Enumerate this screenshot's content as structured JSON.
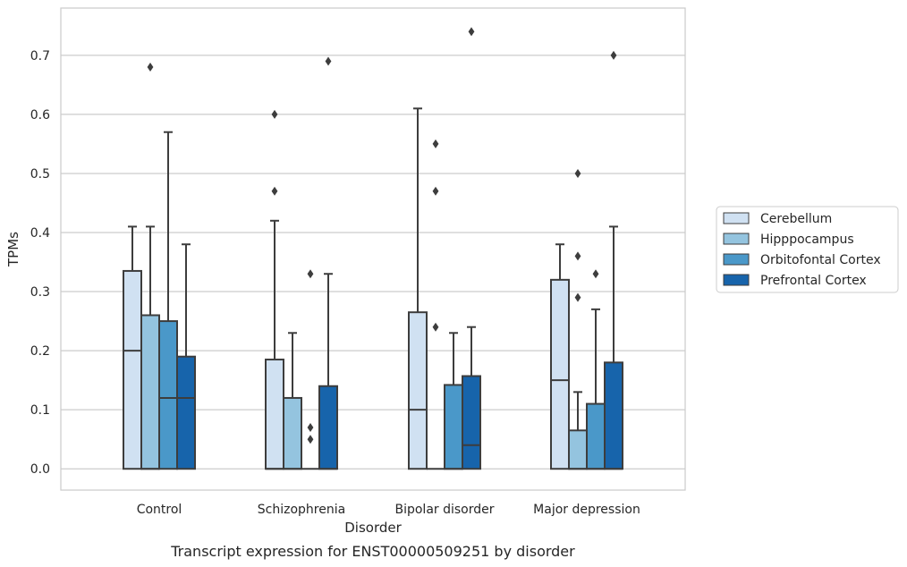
{
  "chart_data": {
    "type": "box",
    "title": "",
    "caption": "Transcript expression for ENST00000509251 by disorder",
    "xlabel": "Disorder",
    "ylabel": "TPMs",
    "ylim": [
      -0.036,
      0.78
    ],
    "yticks": [
      0.0,
      0.1,
      0.2,
      0.3,
      0.4,
      0.5,
      0.6,
      0.7
    ],
    "grid": true,
    "legend_position": "right",
    "categories": [
      "Control",
      "Schizophrenia",
      "Bipolar disorder",
      "Major depression"
    ],
    "series": [
      {
        "name": "Cerebellum",
        "color": "#d0e1f2",
        "boxes": [
          {
            "q1": 0.0,
            "median": 0.2,
            "q3": 0.335,
            "whisker_low": 0.0,
            "whisker_high": 0.41,
            "outliers": []
          },
          {
            "q1": 0.0,
            "median": 0.0,
            "q3": 0.185,
            "whisker_low": 0.0,
            "whisker_high": 0.42,
            "outliers": [
              0.47,
              0.6
            ]
          },
          {
            "q1": 0.0,
            "median": 0.1,
            "q3": 0.265,
            "whisker_low": 0.0,
            "whisker_high": 0.61,
            "outliers": []
          },
          {
            "q1": 0.0,
            "median": 0.15,
            "q3": 0.32,
            "whisker_low": 0.0,
            "whisker_high": 0.38,
            "outliers": []
          }
        ]
      },
      {
        "name": "Hipppocampus",
        "color": "#94c4df",
        "boxes": [
          {
            "q1": 0.0,
            "median": 0.0,
            "q3": 0.26,
            "whisker_low": 0.0,
            "whisker_high": 0.41,
            "outliers": [
              0.68
            ]
          },
          {
            "q1": 0.0,
            "median": 0.0,
            "q3": 0.12,
            "whisker_low": 0.0,
            "whisker_high": 0.23,
            "outliers": []
          },
          {
            "q1": 0.0,
            "median": 0.0,
            "q3": 0.0,
            "whisker_low": 0.0,
            "whisker_high": 0.0,
            "outliers": [
              0.24,
              0.47,
              0.55
            ]
          },
          {
            "q1": 0.0,
            "median": 0.0,
            "q3": 0.065,
            "whisker_low": 0.0,
            "whisker_high": 0.13,
            "outliers": [
              0.29,
              0.36,
              0.5
            ]
          }
        ]
      },
      {
        "name": "Orbitofontal Cortex",
        "color": "#4a98c9",
        "boxes": [
          {
            "q1": 0.0,
            "median": 0.12,
            "q3": 0.25,
            "whisker_low": 0.0,
            "whisker_high": 0.57,
            "outliers": []
          },
          {
            "q1": 0.0,
            "median": 0.0,
            "q3": 0.0,
            "whisker_low": 0.0,
            "whisker_high": 0.0,
            "outliers": [
              0.05,
              0.07,
              0.33
            ]
          },
          {
            "q1": 0.0,
            "median": 0.0,
            "q3": 0.142,
            "whisker_low": 0.0,
            "whisker_high": 0.23,
            "outliers": []
          },
          {
            "q1": 0.0,
            "median": 0.0,
            "q3": 0.11,
            "whisker_low": 0.0,
            "whisker_high": 0.27,
            "outliers": [
              0.33
            ]
          }
        ]
      },
      {
        "name": "Prefrontal Cortex",
        "color": "#1764ab",
        "boxes": [
          {
            "q1": 0.0,
            "median": 0.12,
            "q3": 0.19,
            "whisker_low": 0.0,
            "whisker_high": 0.38,
            "outliers": []
          },
          {
            "q1": 0.0,
            "median": 0.0,
            "q3": 0.14,
            "whisker_low": 0.0,
            "whisker_high": 0.33,
            "outliers": [
              0.69
            ]
          },
          {
            "q1": 0.0,
            "median": 0.04,
            "q3": 0.157,
            "whisker_low": 0.0,
            "whisker_high": 0.24,
            "outliers": [
              0.74
            ]
          },
          {
            "q1": 0.0,
            "median": 0.0,
            "q3": 0.18,
            "whisker_low": 0.0,
            "whisker_high": 0.41,
            "outliers": [
              0.7
            ]
          }
        ]
      }
    ]
  }
}
